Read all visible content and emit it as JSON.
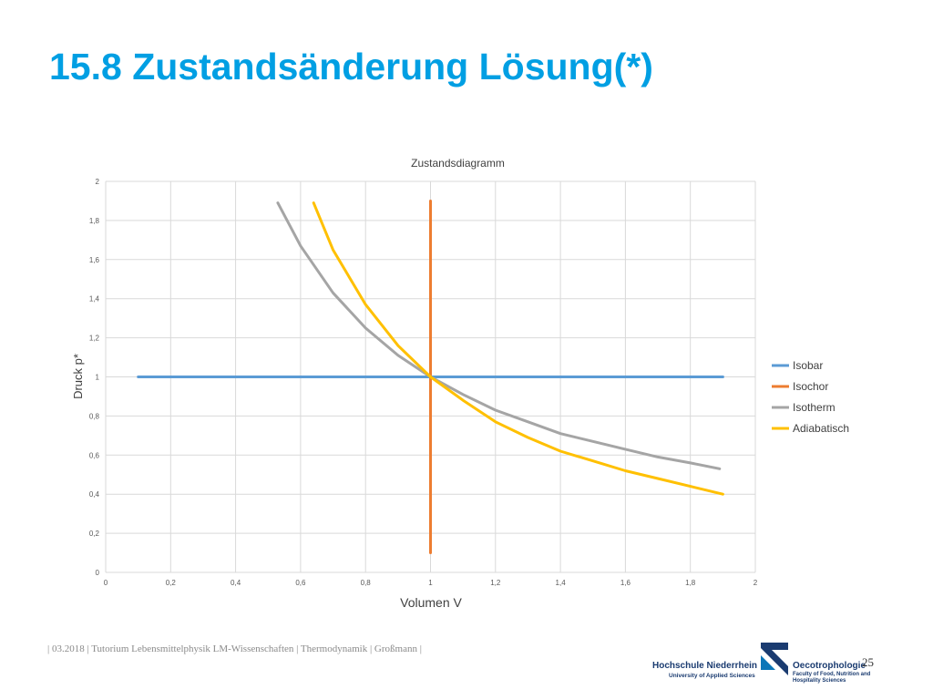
{
  "slide": {
    "title": "15.8 Zustandsänderung Lösung(*)",
    "footer": "| 03.2018 | Tutorium Lebensmittelphysik LM-Wissenschaften | Thermodynamik | Großmann |",
    "page_number": "25"
  },
  "logo": {
    "school": "Hochschule Niederrhein",
    "school_sub": "University of Applied Sciences",
    "faculty": "Oecotrophologie",
    "faculty_sub": "Faculty of Food, Nutrition and Hospitality Sciences",
    "color": "#1a3b70"
  },
  "chart_data": {
    "type": "line",
    "title": "Zustandsdiagramm",
    "xlabel": "Volumen V",
    "ylabel": "Druck p*",
    "xlim": [
      0,
      2
    ],
    "ylim": [
      0,
      2
    ],
    "xticks": [
      "0",
      "0,2",
      "0,4",
      "0,6",
      "0,8",
      "1",
      "1,2",
      "1,4",
      "1,6",
      "1,8",
      "2"
    ],
    "yticks": [
      "0",
      "0,2",
      "0,4",
      "0,6",
      "0,8",
      "1",
      "1,2",
      "1,4",
      "1,6",
      "1,8",
      "2"
    ],
    "grid": true,
    "legend_position": "right",
    "series": [
      {
        "name": "Isobar",
        "color": "#5b9bd5",
        "x": [
          0.1,
          1.9
        ],
        "y": [
          1,
          1
        ]
      },
      {
        "name": "Isochor",
        "color": "#ed7d31",
        "x": [
          1,
          1
        ],
        "y": [
          0.1,
          1.9
        ]
      },
      {
        "name": "Isotherm",
        "color": "#a5a5a5",
        "x": [
          0.53,
          0.6,
          0.7,
          0.8,
          0.9,
          1,
          1.1,
          1.2,
          1.3,
          1.4,
          1.5,
          1.6,
          1.7,
          1.8,
          1.89
        ],
        "y": [
          1.89,
          1.67,
          1.43,
          1.25,
          1.11,
          1,
          0.91,
          0.83,
          0.77,
          0.71,
          0.67,
          0.63,
          0.59,
          0.56,
          0.53
        ]
      },
      {
        "name": "Adiabatisch",
        "color": "#ffc000",
        "x": [
          0.64,
          0.7,
          0.8,
          0.9,
          1,
          1.1,
          1.2,
          1.3,
          1.4,
          1.5,
          1.6,
          1.7,
          1.8,
          1.9
        ],
        "y": [
          1.89,
          1.65,
          1.37,
          1.16,
          1,
          0.88,
          0.77,
          0.69,
          0.62,
          0.57,
          0.52,
          0.48,
          0.44,
          0.4
        ]
      }
    ]
  }
}
